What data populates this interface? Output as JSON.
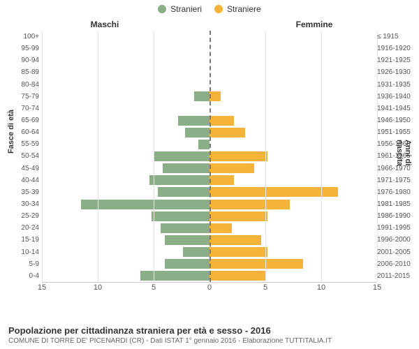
{
  "legend": {
    "male": {
      "label": "Stranieri",
      "color": "#8aae86"
    },
    "female": {
      "label": "Straniere",
      "color": "#f5b338"
    }
  },
  "headers": {
    "male": "Maschi",
    "female": "Femmine"
  },
  "axes": {
    "left_title": "Fasce di età",
    "right_title": "Anni di nascita",
    "xlim": 15,
    "xticks": [
      15,
      10,
      5,
      0,
      5,
      10,
      15
    ],
    "grid_color": "#e6e6e6"
  },
  "rows": [
    {
      "age": "100+",
      "birth": "≤ 1915",
      "m": 0,
      "f": 0
    },
    {
      "age": "95-99",
      "birth": "1916-1920",
      "m": 0,
      "f": 0
    },
    {
      "age": "90-94",
      "birth": "1921-1925",
      "m": 0,
      "f": 0
    },
    {
      "age": "85-89",
      "birth": "1926-1930",
      "m": 0,
      "f": 0
    },
    {
      "age": "80-84",
      "birth": "1931-1935",
      "m": 0,
      "f": 0
    },
    {
      "age": "75-79",
      "birth": "1936-1940",
      "m": 1.4,
      "f": 1
    },
    {
      "age": "70-74",
      "birth": "1941-1945",
      "m": 0,
      "f": 0
    },
    {
      "age": "65-69",
      "birth": "1946-1950",
      "m": 2.8,
      "f": 2.2
    },
    {
      "age": "60-64",
      "birth": "1951-1955",
      "m": 2.2,
      "f": 3.2
    },
    {
      "age": "55-59",
      "birth": "1956-1960",
      "m": 1,
      "f": 0
    },
    {
      "age": "50-54",
      "birth": "1961-1965",
      "m": 5,
      "f": 5.2
    },
    {
      "age": "45-49",
      "birth": "1966-1970",
      "m": 4.2,
      "f": 4
    },
    {
      "age": "40-44",
      "birth": "1971-1975",
      "m": 5.4,
      "f": 2.2
    },
    {
      "age": "35-39",
      "birth": "1976-1980",
      "m": 4.6,
      "f": 11.5
    },
    {
      "age": "30-34",
      "birth": "1981-1985",
      "m": 11.5,
      "f": 7.2
    },
    {
      "age": "25-29",
      "birth": "1986-1990",
      "m": 5.2,
      "f": 5.2
    },
    {
      "age": "20-24",
      "birth": "1991-1995",
      "m": 4.4,
      "f": 2
    },
    {
      "age": "15-19",
      "birth": "1996-2000",
      "m": 4,
      "f": 4.6
    },
    {
      "age": "10-14",
      "birth": "2001-2005",
      "m": 2.4,
      "f": 5.2
    },
    {
      "age": "5-9",
      "birth": "2006-2010",
      "m": 4,
      "f": 8.4
    },
    {
      "age": "0-4",
      "birth": "2011-2015",
      "m": 6.2,
      "f": 5
    }
  ],
  "footer": {
    "title": "Popolazione per cittadinanza straniera per età e sesso - 2016",
    "subtitle": "COMUNE DI TORRE DE' PICENARDI (CR) - Dati ISTAT 1° gennaio 2016 - Elaborazione TUTTITALIA.IT"
  },
  "colors": {
    "background": "#ffffff",
    "text": "#333333"
  }
}
